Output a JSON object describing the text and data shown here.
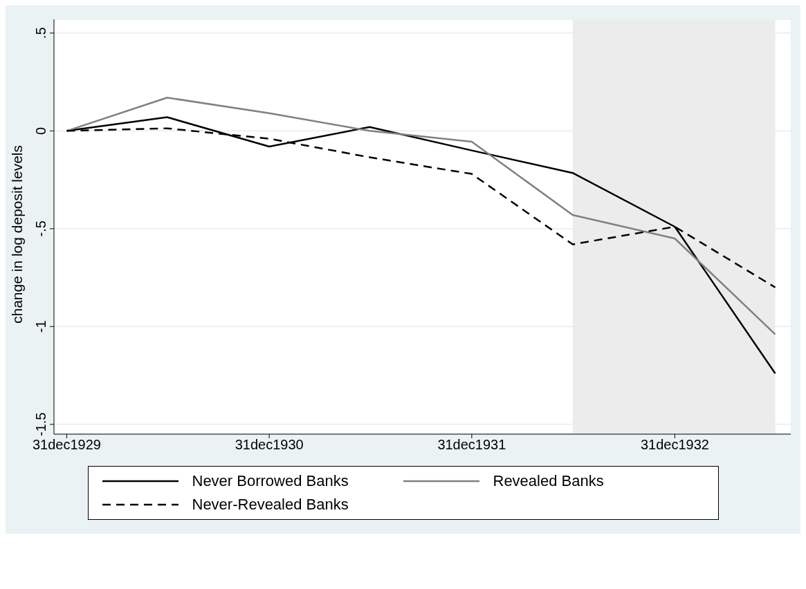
{
  "chart_data": {
    "type": "line",
    "ylabel": "change in log deposit levels",
    "x": [
      "1929-12-31",
      "1930-06-30",
      "1930-12-31",
      "1931-06-30",
      "1931-12-31",
      "1932-06-30",
      "1932-12-31",
      "1933-06-30"
    ],
    "series": [
      {
        "name": "Never Borrowed Banks",
        "color": "#000000",
        "line_style": "solid",
        "values": [
          0,
          0.07,
          -0.08,
          0.02,
          -0.1,
          -0.215,
          -0.49,
          -1.24
        ]
      },
      {
        "name": "Revealed Banks",
        "color": "#808080",
        "line_style": "solid",
        "values": [
          0,
          0.17,
          0.09,
          0.0,
          -0.055,
          -0.43,
          -0.55,
          -1.04
        ]
      },
      {
        "name": "Never-Revealed Banks",
        "color": "#000000",
        "line_style": "dashed",
        "values": [
          0,
          0.013,
          -0.04,
          -0.135,
          -0.22,
          -0.58,
          -0.49,
          -0.8
        ]
      }
    ],
    "xlim": [
      "1929-12-08",
      "1933-07-28"
    ],
    "xticks": [
      {
        "value": "1929-12-31",
        "label": "31dec1929"
      },
      {
        "value": "1930-12-31",
        "label": "31dec1930"
      },
      {
        "value": "1931-12-31",
        "label": "31dec1931"
      },
      {
        "value": "1932-12-31",
        "label": "31dec1932"
      }
    ],
    "ylim": [
      -1.55,
      0.57
    ],
    "yticks": [
      {
        "value": 0.5,
        "label": ".5"
      },
      0,
      {
        "value": -0.5,
        "label": "-.5"
      },
      -1,
      -1.5
    ],
    "bands": [
      {
        "axis": "x",
        "from": "1932-06-30",
        "to": "1933-06-30",
        "color": "#ececec"
      }
    ],
    "grid": "y",
    "legend": "bottom",
    "marker": "none"
  }
}
